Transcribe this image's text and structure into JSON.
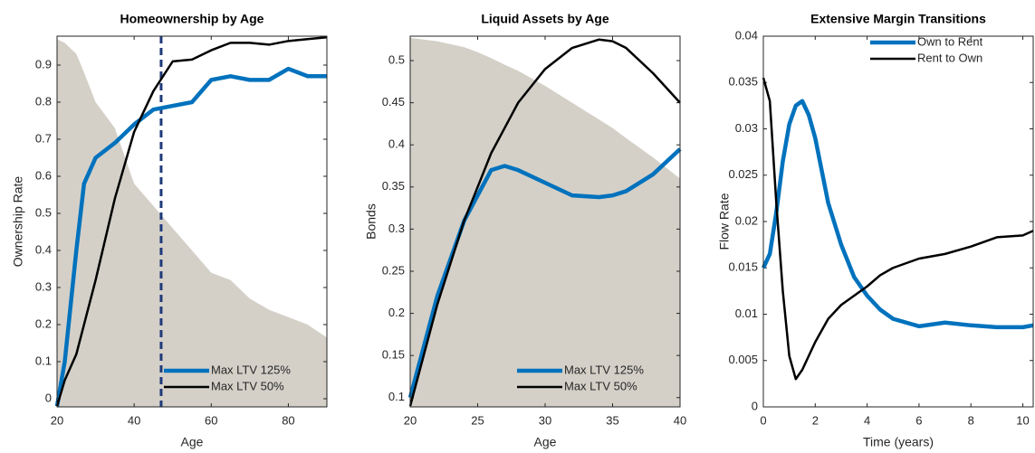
{
  "chart_data": [
    {
      "type": "line",
      "title": "Homeownership by Age",
      "xlabel": "Age",
      "ylabel": "Ownership Rate",
      "x": [
        20,
        22,
        25,
        27,
        30,
        35,
        40,
        45,
        50,
        55,
        60,
        65,
        70,
        75,
        80,
        85,
        90
      ],
      "series": [
        {
          "name": "Max LTV 125%",
          "color": "#0072bd",
          "values": [
            -0.02,
            0.1,
            0.4,
            0.58,
            0.65,
            0.69,
            0.74,
            0.78,
            0.79,
            0.8,
            0.86,
            0.87,
            0.86,
            0.86,
            0.89,
            0.87,
            0.87
          ]
        },
        {
          "name": "Max LTV 50%",
          "color": "#000000",
          "values": [
            -0.02,
            0.05,
            0.12,
            0.2,
            0.32,
            0.54,
            0.72,
            0.83,
            0.91,
            0.915,
            0.94,
            0.96,
            0.96,
            0.955,
            0.965,
            0.97,
            0.975
          ]
        }
      ],
      "area": {
        "color": "#d4d0c8",
        "values": [
          0.97,
          0.96,
          0.93,
          0.88,
          0.8,
          0.73,
          0.58,
          0.52,
          0.46,
          0.4,
          0.34,
          0.32,
          0.27,
          0.24,
          0.22,
          0.2,
          0.165
        ]
      },
      "vline": {
        "x": 47,
        "color": "#1f3a7a"
      },
      "xlim": [
        20,
        90
      ],
      "xticks": [
        20,
        40,
        60,
        80
      ],
      "ylim": [
        -0.022,
        0.978
      ],
      "yticks": [
        0,
        0.1,
        0.2,
        0.3,
        0.4,
        0.5,
        0.6,
        0.7,
        0.8,
        0.9
      ],
      "legend": "lower right"
    },
    {
      "type": "line",
      "title": "Liquid Assets by Age",
      "xlabel": "Age",
      "ylabel": "Bonds",
      "x": [
        20,
        22,
        24,
        25,
        26,
        27,
        28,
        30,
        32,
        34,
        35,
        36,
        38,
        40
      ],
      "series": [
        {
          "name": "Max LTV 125%",
          "color": "#0072bd",
          "values": [
            0.1,
            0.22,
            0.31,
            0.34,
            0.37,
            0.375,
            0.37,
            0.355,
            0.34,
            0.338,
            0.34,
            0.345,
            0.365,
            0.395
          ]
        },
        {
          "name": "Max LTV 50%",
          "color": "#000000",
          "values": [
            0.09,
            0.21,
            0.31,
            0.35,
            0.39,
            0.42,
            0.45,
            0.49,
            0.515,
            0.525,
            0.523,
            0.515,
            0.485,
            0.45
          ]
        }
      ],
      "area": {
        "color": "#d4d0c8",
        "values": [
          0.527,
          0.523,
          0.516,
          0.51,
          0.503,
          0.495,
          0.488,
          0.47,
          0.45,
          0.43,
          0.42,
          0.408,
          0.385,
          0.36
        ]
      },
      "xlim": [
        20,
        40
      ],
      "xticks": [
        20,
        25,
        30,
        35,
        40
      ],
      "ylim": [
        0.089,
        0.529
      ],
      "yticks": [
        0.1,
        0.15,
        0.2,
        0.25,
        0.3,
        0.35,
        0.4,
        0.45,
        0.5
      ],
      "legend": "lower right"
    },
    {
      "type": "line",
      "title": "Extensive Margin Transitions",
      "xlabel": "Time (years)",
      "ylabel": "Flow Rate",
      "x": [
        0,
        0.25,
        0.5,
        0.75,
        1,
        1.25,
        1.5,
        1.75,
        2,
        2.5,
        3,
        3.5,
        4,
        4.5,
        5,
        6,
        7,
        8,
        9,
        10,
        10.4
      ],
      "series": [
        {
          "name": "Own to Rent",
          "color": "#0072bd",
          "values": [
            0.015,
            0.0165,
            0.021,
            0.0265,
            0.0305,
            0.0325,
            0.033,
            0.0315,
            0.029,
            0.022,
            0.0175,
            0.014,
            0.012,
            0.0105,
            0.0095,
            0.0087,
            0.0091,
            0.0088,
            0.0086,
            0.0086,
            0.0088
          ]
        },
        {
          "name": "Rent to Own",
          "color": "#000000",
          "values": [
            0.0355,
            0.033,
            0.022,
            0.0125,
            0.0055,
            0.003,
            0.004,
            0.0055,
            0.007,
            0.0095,
            0.011,
            0.012,
            0.013,
            0.0142,
            0.015,
            0.016,
            0.0165,
            0.0173,
            0.0183,
            0.0185,
            0.019
          ]
        }
      ],
      "xlim": [
        0,
        10.4
      ],
      "xticks": [
        0,
        2,
        4,
        6,
        8,
        10
      ],
      "ylim": [
        0,
        0.04
      ],
      "yticks": [
        0,
        0.005,
        0.01,
        0.015,
        0.02,
        0.025,
        0.03,
        0.035,
        0.04
      ],
      "legend": "upper right"
    }
  ]
}
